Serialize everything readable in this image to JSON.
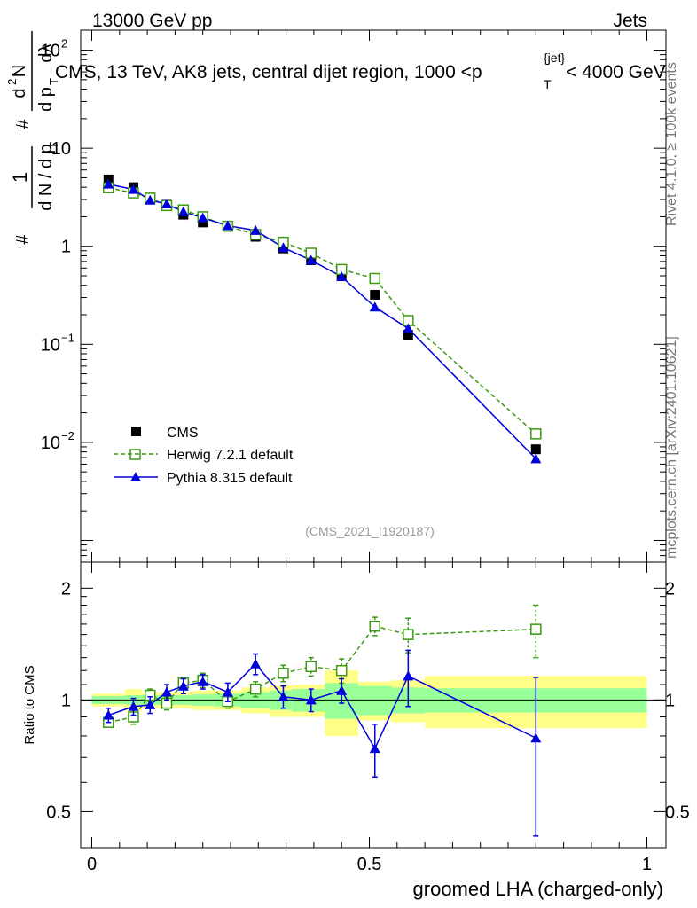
{
  "header": {
    "left": "13000 GeV pp",
    "right": "Jets"
  },
  "side": {
    "rivet": "Rivet 4.1.0, ≥ 100k events",
    "mcplots": "mcplots.cern.ch [arXiv:2401.10621]"
  },
  "chart_data": {
    "type": "scatter",
    "title": "CMS, 13 TeV, AK8 jets, central dijet region, 1000 <p_T^{jet}< 4000 GeV",
    "title_parts": {
      "before": "CMS, 13 TeV, AK8 jets, central dijet region, 1000 <",
      "p": "p",
      "sub": "T",
      "sup": "{jet}",
      "after": "< 4000 GeV"
    },
    "analysis_id": "(CMS_2021_I1920187)",
    "xlabel": "groomed LHA (charged-only)",
    "ylabel_top": "1/(dN/dp_T) d²N/(dp_T dλ)",
    "ylabel_top_parts": {
      "num1": "1",
      "den1": "d N / d p",
      "den1_sub": "T",
      "num2_d": "d",
      "num2_sup": "2",
      "num2_N": "N",
      "den2": "d p",
      "den2_sub": "T",
      "den2_tail": "dλ",
      "hash": "#"
    },
    "ylabel_bottom": "Ratio to CMS",
    "xlim": [
      0,
      1
    ],
    "ylim_top": [
      0.0006,
      160
    ],
    "ylim_bottom": [
      0.4,
      2.35
    ],
    "x_ticks": [
      {
        "value": 0,
        "label": "0"
      },
      {
        "value": 0.5,
        "label": "0.5"
      },
      {
        "value": 1,
        "label": "1"
      }
    ],
    "y_ticks_top": [
      {
        "value": 0.01,
        "base": "10",
        "exp": "−2"
      },
      {
        "value": 0.1,
        "base": "10",
        "exp": "−1"
      },
      {
        "value": 1,
        "base": "1",
        "exp": ""
      },
      {
        "value": 10,
        "base": "10",
        "exp": ""
      },
      {
        "value": 100,
        "base": "10",
        "exp": "2"
      }
    ],
    "y_ticks_bottom": [
      {
        "value": 0.5,
        "label": "0.5"
      },
      {
        "value": 1,
        "label": "1"
      },
      {
        "value": 2,
        "label": "2"
      }
    ],
    "bins": [
      {
        "lo": 0.0,
        "hi": 0.06
      },
      {
        "lo": 0.06,
        "hi": 0.09
      },
      {
        "lo": 0.09,
        "hi": 0.12
      },
      {
        "lo": 0.12,
        "hi": 0.15
      },
      {
        "lo": 0.15,
        "hi": 0.18
      },
      {
        "lo": 0.18,
        "hi": 0.22
      },
      {
        "lo": 0.22,
        "hi": 0.27
      },
      {
        "lo": 0.27,
        "hi": 0.32
      },
      {
        "lo": 0.32,
        "hi": 0.36
      },
      {
        "lo": 0.36,
        "hi": 0.42
      },
      {
        "lo": 0.42,
        "hi": 0.48
      },
      {
        "lo": 0.48,
        "hi": 0.54
      },
      {
        "lo": 0.54,
        "hi": 0.6
      },
      {
        "lo": 0.6,
        "hi": 1.0
      }
    ],
    "band_stat": [
      0.025,
      0.03,
      0.03,
      0.03,
      0.03,
      0.035,
      0.04,
      0.05,
      0.06,
      0.07,
      0.11,
      0.09,
      0.08,
      0.075
    ],
    "band_total": [
      0.04,
      0.07,
      0.05,
      0.05,
      0.05,
      0.06,
      0.06,
      0.08,
      0.1,
      0.1,
      0.2,
      0.12,
      0.13,
      0.16
    ],
    "series": [
      {
        "name": "CMS",
        "style": "data",
        "color": "#000000",
        "x": [
          0.03,
          0.075,
          0.105,
          0.135,
          0.165,
          0.2,
          0.245,
          0.295,
          0.345,
          0.395,
          0.45,
          0.51,
          0.57,
          0.8
        ],
        "y": [
          4.8,
          4.0,
          3.0,
          2.7,
          2.1,
          1.75,
          1.6,
          1.25,
          0.95,
          0.72,
          0.5,
          0.32,
          0.125,
          0.0085
        ]
      },
      {
        "name": "Herwig 7.2.1 default",
        "style": "herwig",
        "color": "#3a9a10",
        "x": [
          0.03,
          0.075,
          0.105,
          0.135,
          0.165,
          0.2,
          0.245,
          0.295,
          0.345,
          0.395,
          0.45,
          0.51,
          0.57,
          0.8
        ],
        "y": [
          3.95,
          3.5,
          3.1,
          2.6,
          2.35,
          2.0,
          1.6,
          1.32,
          1.1,
          0.85,
          0.58,
          0.47,
          0.175,
          0.0122
        ],
        "ratio": [
          0.87,
          0.9,
          1.03,
          0.98,
          1.11,
          1.13,
          0.99,
          1.07,
          1.18,
          1.23,
          1.2,
          1.58,
          1.5,
          1.55
        ],
        "ratio_err": [
          0.02,
          0.04,
          0.04,
          0.04,
          0.04,
          0.05,
          0.04,
          0.05,
          0.06,
          0.07,
          0.09,
          0.09,
          0.16,
          0.25
        ]
      },
      {
        "name": "Pythia 8.315 default",
        "style": "pythia",
        "color": "#0000dd",
        "x": [
          0.03,
          0.075,
          0.105,
          0.135,
          0.165,
          0.2,
          0.245,
          0.295,
          0.345,
          0.395,
          0.45,
          0.51,
          0.57,
          0.8
        ],
        "y": [
          4.3,
          3.8,
          2.95,
          2.7,
          2.25,
          1.95,
          1.62,
          1.45,
          0.97,
          0.72,
          0.49,
          0.24,
          0.145,
          0.0068
        ],
        "ratio": [
          0.91,
          0.96,
          0.97,
          1.05,
          1.09,
          1.12,
          1.05,
          1.25,
          1.02,
          1.0,
          1.06,
          0.74,
          1.16,
          0.79
        ],
        "ratio_err": [
          0.04,
          0.05,
          0.05,
          0.05,
          0.05,
          0.05,
          0.06,
          0.08,
          0.07,
          0.07,
          0.08,
          0.12,
          0.2,
          0.36
        ]
      }
    ]
  }
}
